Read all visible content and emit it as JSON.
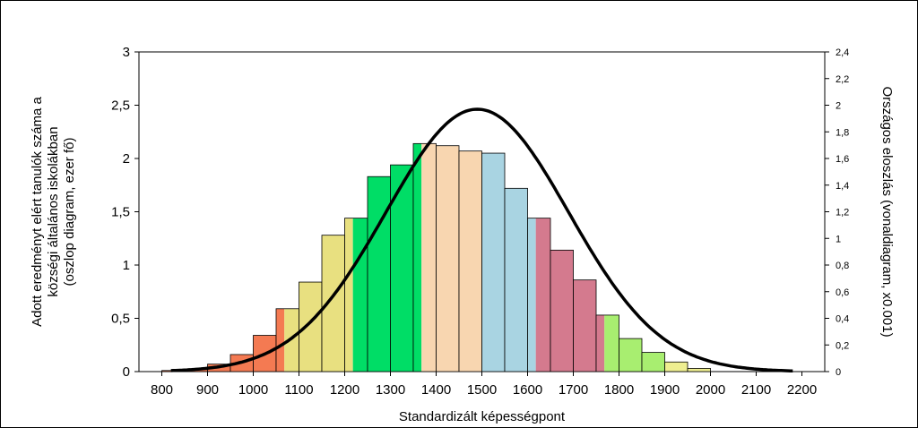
{
  "chart_data": {
    "type": "bar",
    "xlabel": "Standardizált képességpont",
    "ylabel_lines": [
      "Adott eredményt elért tanulók száma a",
      "községi általános iskolákban",
      "(oszlop diagram, ezer fő)"
    ],
    "y2label": "Országos eloszlás (vonaldiagram, x0.001)",
    "xlim": [
      750,
      2250
    ],
    "ylim": [
      0,
      3
    ],
    "y2lim": [
      0,
      2.4
    ],
    "x_ticks": [
      800,
      900,
      1000,
      1100,
      1200,
      1300,
      1400,
      1500,
      1600,
      1700,
      1800,
      1900,
      2000,
      2100,
      2200
    ],
    "x_tick_labels": [
      "800",
      "900",
      "1000",
      "1100",
      "1200",
      "1300",
      "1400",
      "1500",
      "1600",
      "1700",
      "1800",
      "1900",
      "2000",
      "2100",
      "2200"
    ],
    "y_ticks": [
      0,
      0.5,
      1,
      1.5,
      2,
      2.5,
      3
    ],
    "y_tick_labels": [
      "0",
      "0,5",
      "1",
      "1,5",
      "2",
      "2,5",
      "3"
    ],
    "y2_ticks": [
      0,
      0.2,
      0.4,
      0.6,
      0.8,
      1,
      1.2,
      1.4,
      1.6,
      1.8,
      2,
      2.2,
      2.4
    ],
    "y2_tick_labels": [
      "0",
      "0,2",
      "0,4",
      "0,6",
      "0,8",
      "1",
      "1,2",
      "1,4",
      "1,6",
      "1,8",
      "2",
      "2,2",
      "2,4"
    ],
    "bin_width": 50,
    "bars": [
      {
        "x": 825,
        "value": 0.01,
        "color": "#f47a52"
      },
      {
        "x": 875,
        "value": 0.02,
        "color": "#f47a52"
      },
      {
        "x": 925,
        "value": 0.07,
        "color": "#f47a52"
      },
      {
        "x": 975,
        "value": 0.16,
        "color": "#f47a52"
      },
      {
        "x": 1025,
        "value": 0.34,
        "color": "#f47a52"
      },
      {
        "x": 1075,
        "value": 0.59,
        "color": "#f47a52",
        "color2": "#e8e080"
      },
      {
        "x": 1125,
        "value": 0.84,
        "color": "#e8e080"
      },
      {
        "x": 1175,
        "value": 1.28,
        "color": "#e8e080"
      },
      {
        "x": 1225,
        "value": 1.44,
        "color": "#e8e080",
        "color2": "#00dd66"
      },
      {
        "x": 1275,
        "value": 1.83,
        "color": "#00dd66"
      },
      {
        "x": 1325,
        "value": 1.94,
        "color": "#00dd66"
      },
      {
        "x": 1375,
        "value": 2.14,
        "color": "#00dd66",
        "color2": "#f8d6b0"
      },
      {
        "x": 1425,
        "value": 2.12,
        "color": "#f8d6b0"
      },
      {
        "x": 1475,
        "value": 2.07,
        "color": "#f8d6b0"
      },
      {
        "x": 1525,
        "value": 2.05,
        "color": "#a9d4e2"
      },
      {
        "x": 1575,
        "value": 1.72,
        "color": "#a9d4e2"
      },
      {
        "x": 1625,
        "value": 1.44,
        "color": "#a9d4e2",
        "color2": "#d47a8e"
      },
      {
        "x": 1675,
        "value": 1.14,
        "color": "#d47a8e"
      },
      {
        "x": 1725,
        "value": 0.86,
        "color": "#d47a8e"
      },
      {
        "x": 1775,
        "value": 0.53,
        "color": "#d47a8e",
        "color2": "#a8ee70"
      },
      {
        "x": 1825,
        "value": 0.31,
        "color": "#a8ee70"
      },
      {
        "x": 1875,
        "value": 0.18,
        "color": "#a8ee70"
      },
      {
        "x": 1925,
        "value": 0.09,
        "color": "#eeee90"
      },
      {
        "x": 1975,
        "value": 0.03,
        "color": "#eeee90"
      }
    ],
    "line": {
      "name": "Országos eloszlás",
      "mean": 1490,
      "peak": 1.97,
      "sd": 200,
      "color": "#000000"
    }
  }
}
